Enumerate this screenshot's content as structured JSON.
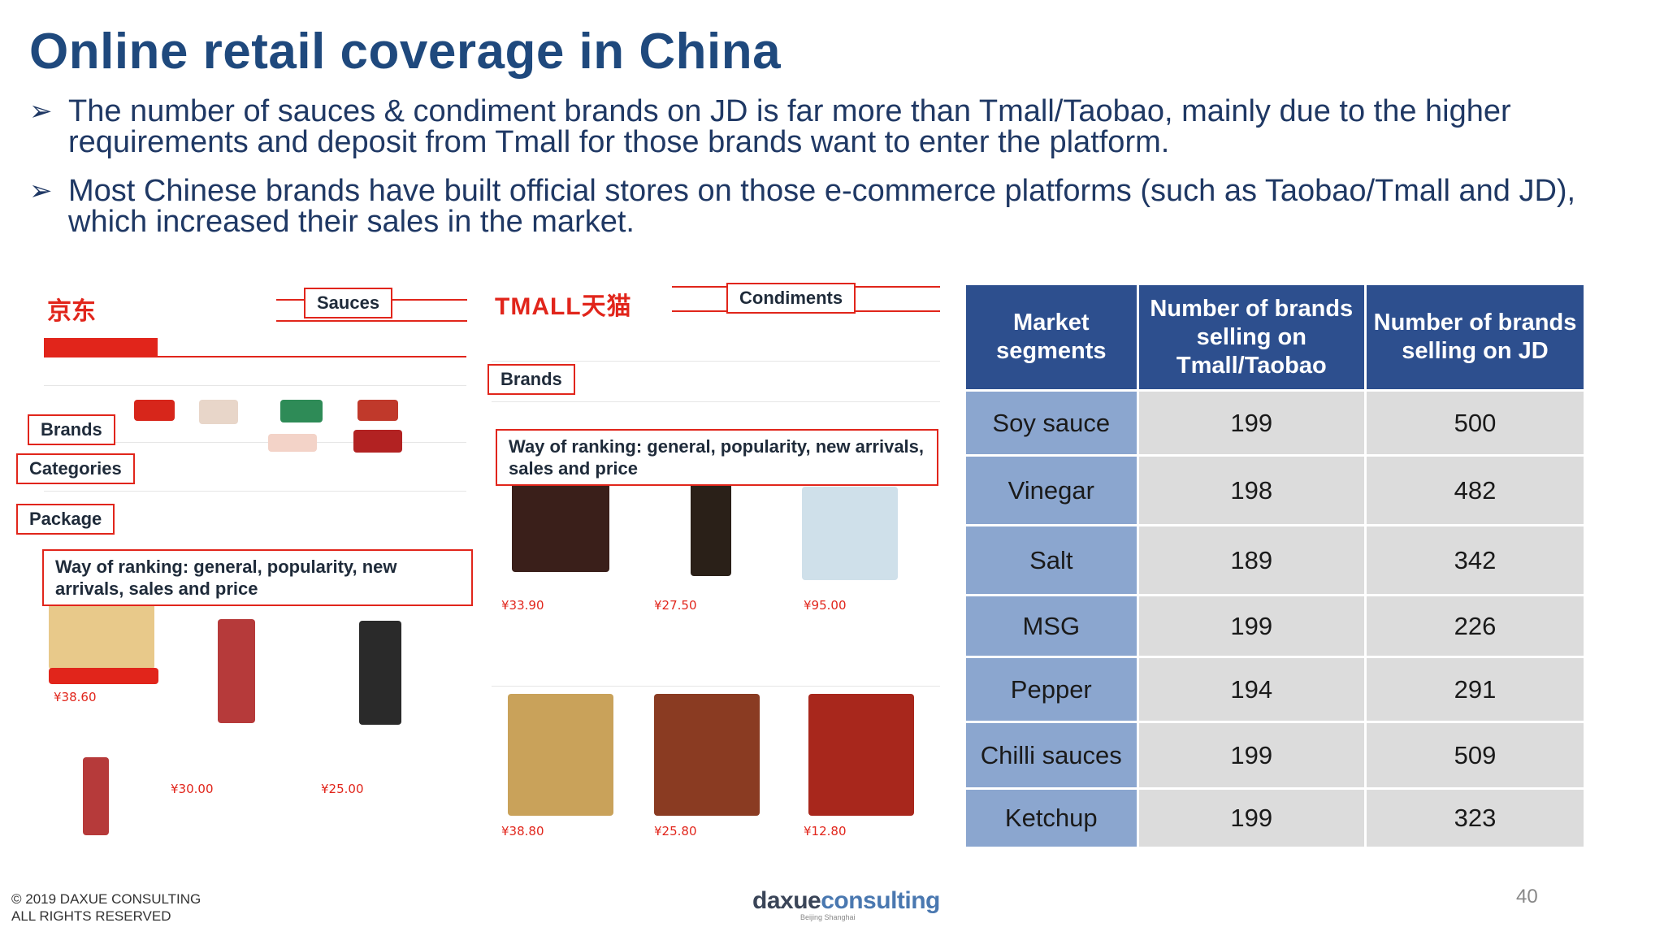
{
  "title": "Online retail coverage in China",
  "bullets": [
    "The number of sauces & condiment brands on JD is far more than Tmall/Taobao, mainly due to the higher requirements and deposit from Tmall for those brands want to enter the platform.",
    "Most Chinese brands have built official stores on those e-commerce platforms (such as Taobao/Tmall and JD), which increased their sales in the market."
  ],
  "bullet_icon": "arrow-bullet-icon",
  "jd_screenshot": {
    "logo": "京东",
    "callouts": {
      "search": "Sauces",
      "brands": "Brands",
      "categories": "Categories",
      "package": "Package",
      "ranking": "Way of ranking: general, popularity, new arrivals, sales and price"
    },
    "prices": [
      "¥38.60",
      "¥30.00",
      "¥25.00"
    ]
  },
  "tmall_screenshot": {
    "logo": "TMALL天猫",
    "callouts": {
      "search": "Condiments",
      "brands": "Brands",
      "ranking": "Way of ranking: general, popularity, new arrivals, sales and price"
    },
    "prices": [
      "¥33.90",
      "¥27.50",
      "¥95.00",
      "¥38.80",
      "¥25.80",
      "¥12.80"
    ]
  },
  "table": {
    "headers": [
      "Market segments",
      "Number of brands selling on Tmall/Taobao",
      "Number of brands selling on JD"
    ],
    "rows": [
      [
        "Soy sauce",
        "199",
        "500"
      ],
      [
        "Vinegar",
        "198",
        "482"
      ],
      [
        "Salt",
        "189",
        "342"
      ],
      [
        "MSG",
        "199",
        "226"
      ],
      [
        "Pepper",
        "194",
        "291"
      ],
      [
        "Chilli sauces",
        "199",
        "509"
      ],
      [
        "Ketchup",
        "199",
        "323"
      ]
    ]
  },
  "footer": {
    "copyright_line1": "© 2019 DAXUE CONSULTING",
    "copyright_line2": "ALL RIGHTS RESERVED",
    "logo_a": "daxue",
    "logo_b": "consulting",
    "logo_sub": "Beijing Shanghai",
    "page_number": "40"
  },
  "colors": {
    "title": "#1f497d",
    "table_header": "#2d4f8e",
    "segment_cell": "#8ba6cf",
    "value_cell": "#dcdcdc",
    "callout_border": "#e1251b"
  }
}
